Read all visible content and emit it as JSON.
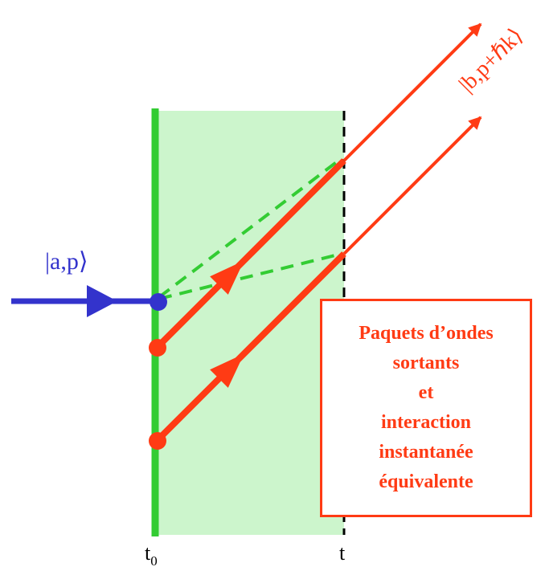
{
  "labels": {
    "incoming_state": "|a,p⟩",
    "outgoing_state": "|b,p+ℏk⟩",
    "t0_base": "t",
    "t0_sub": "0",
    "t": "t"
  },
  "box_lines": [
    "Paquets d’ondes",
    "sortants",
    "et",
    "interaction",
    "instantanée",
    "équivalente"
  ],
  "colors": {
    "interaction_region": "#ccf5cc",
    "t0_line": "#33cc33",
    "incoming": "#3333cc",
    "outgoing": "#ff3b14",
    "dashed_green": "#33cc33",
    "box_border": "#ff3b14"
  }
}
